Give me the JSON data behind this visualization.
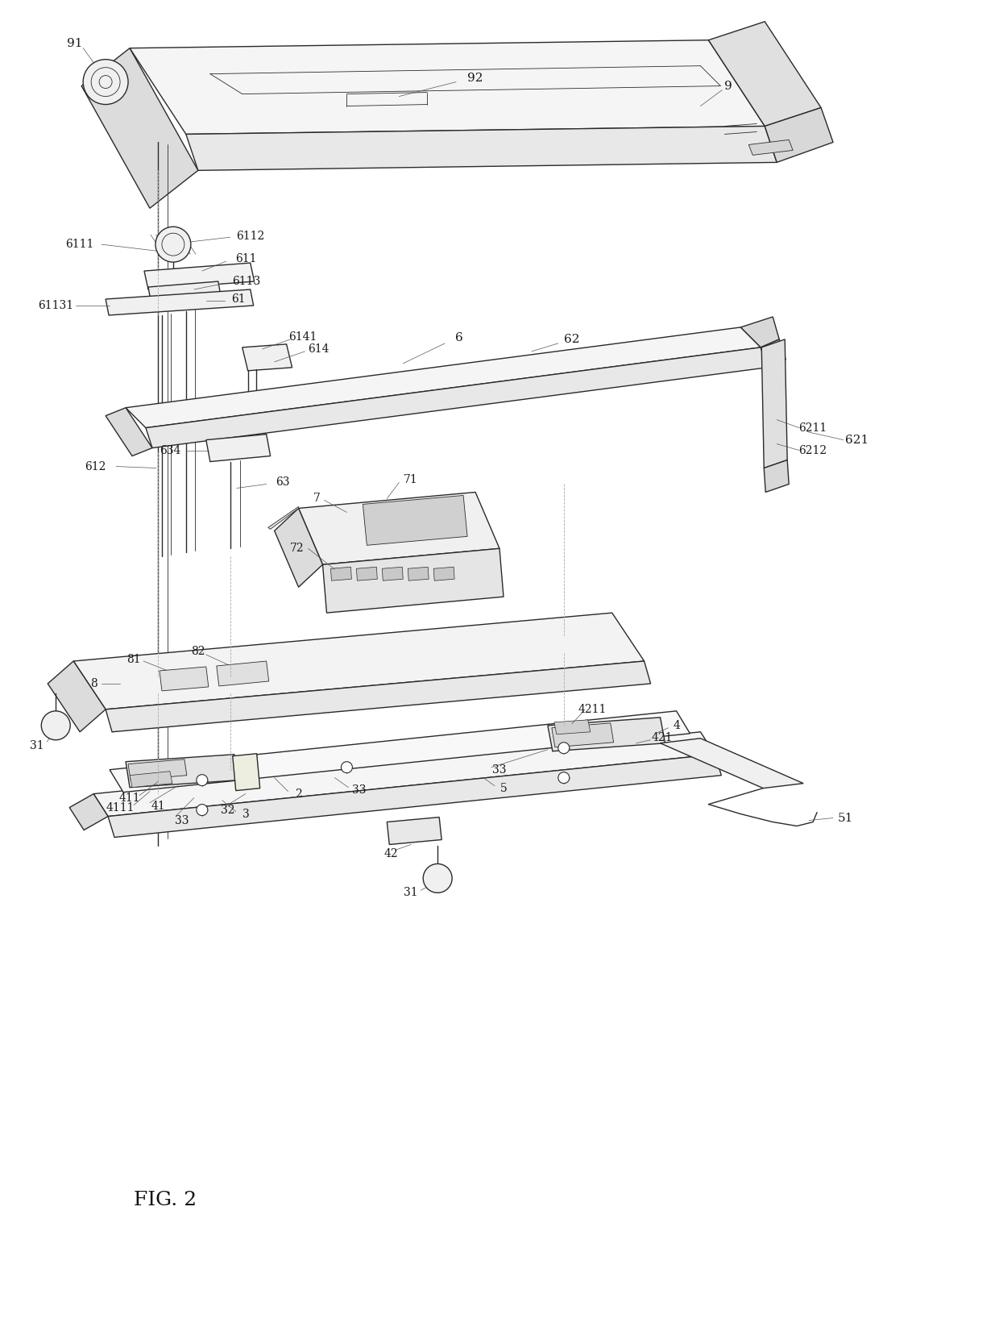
{
  "title": "FIG. 2",
  "bg_color": "#ffffff",
  "line_color": "#2a2a2a",
  "label_color": "#1a1a1a",
  "lw": 1.0,
  "tlw": 0.6
}
